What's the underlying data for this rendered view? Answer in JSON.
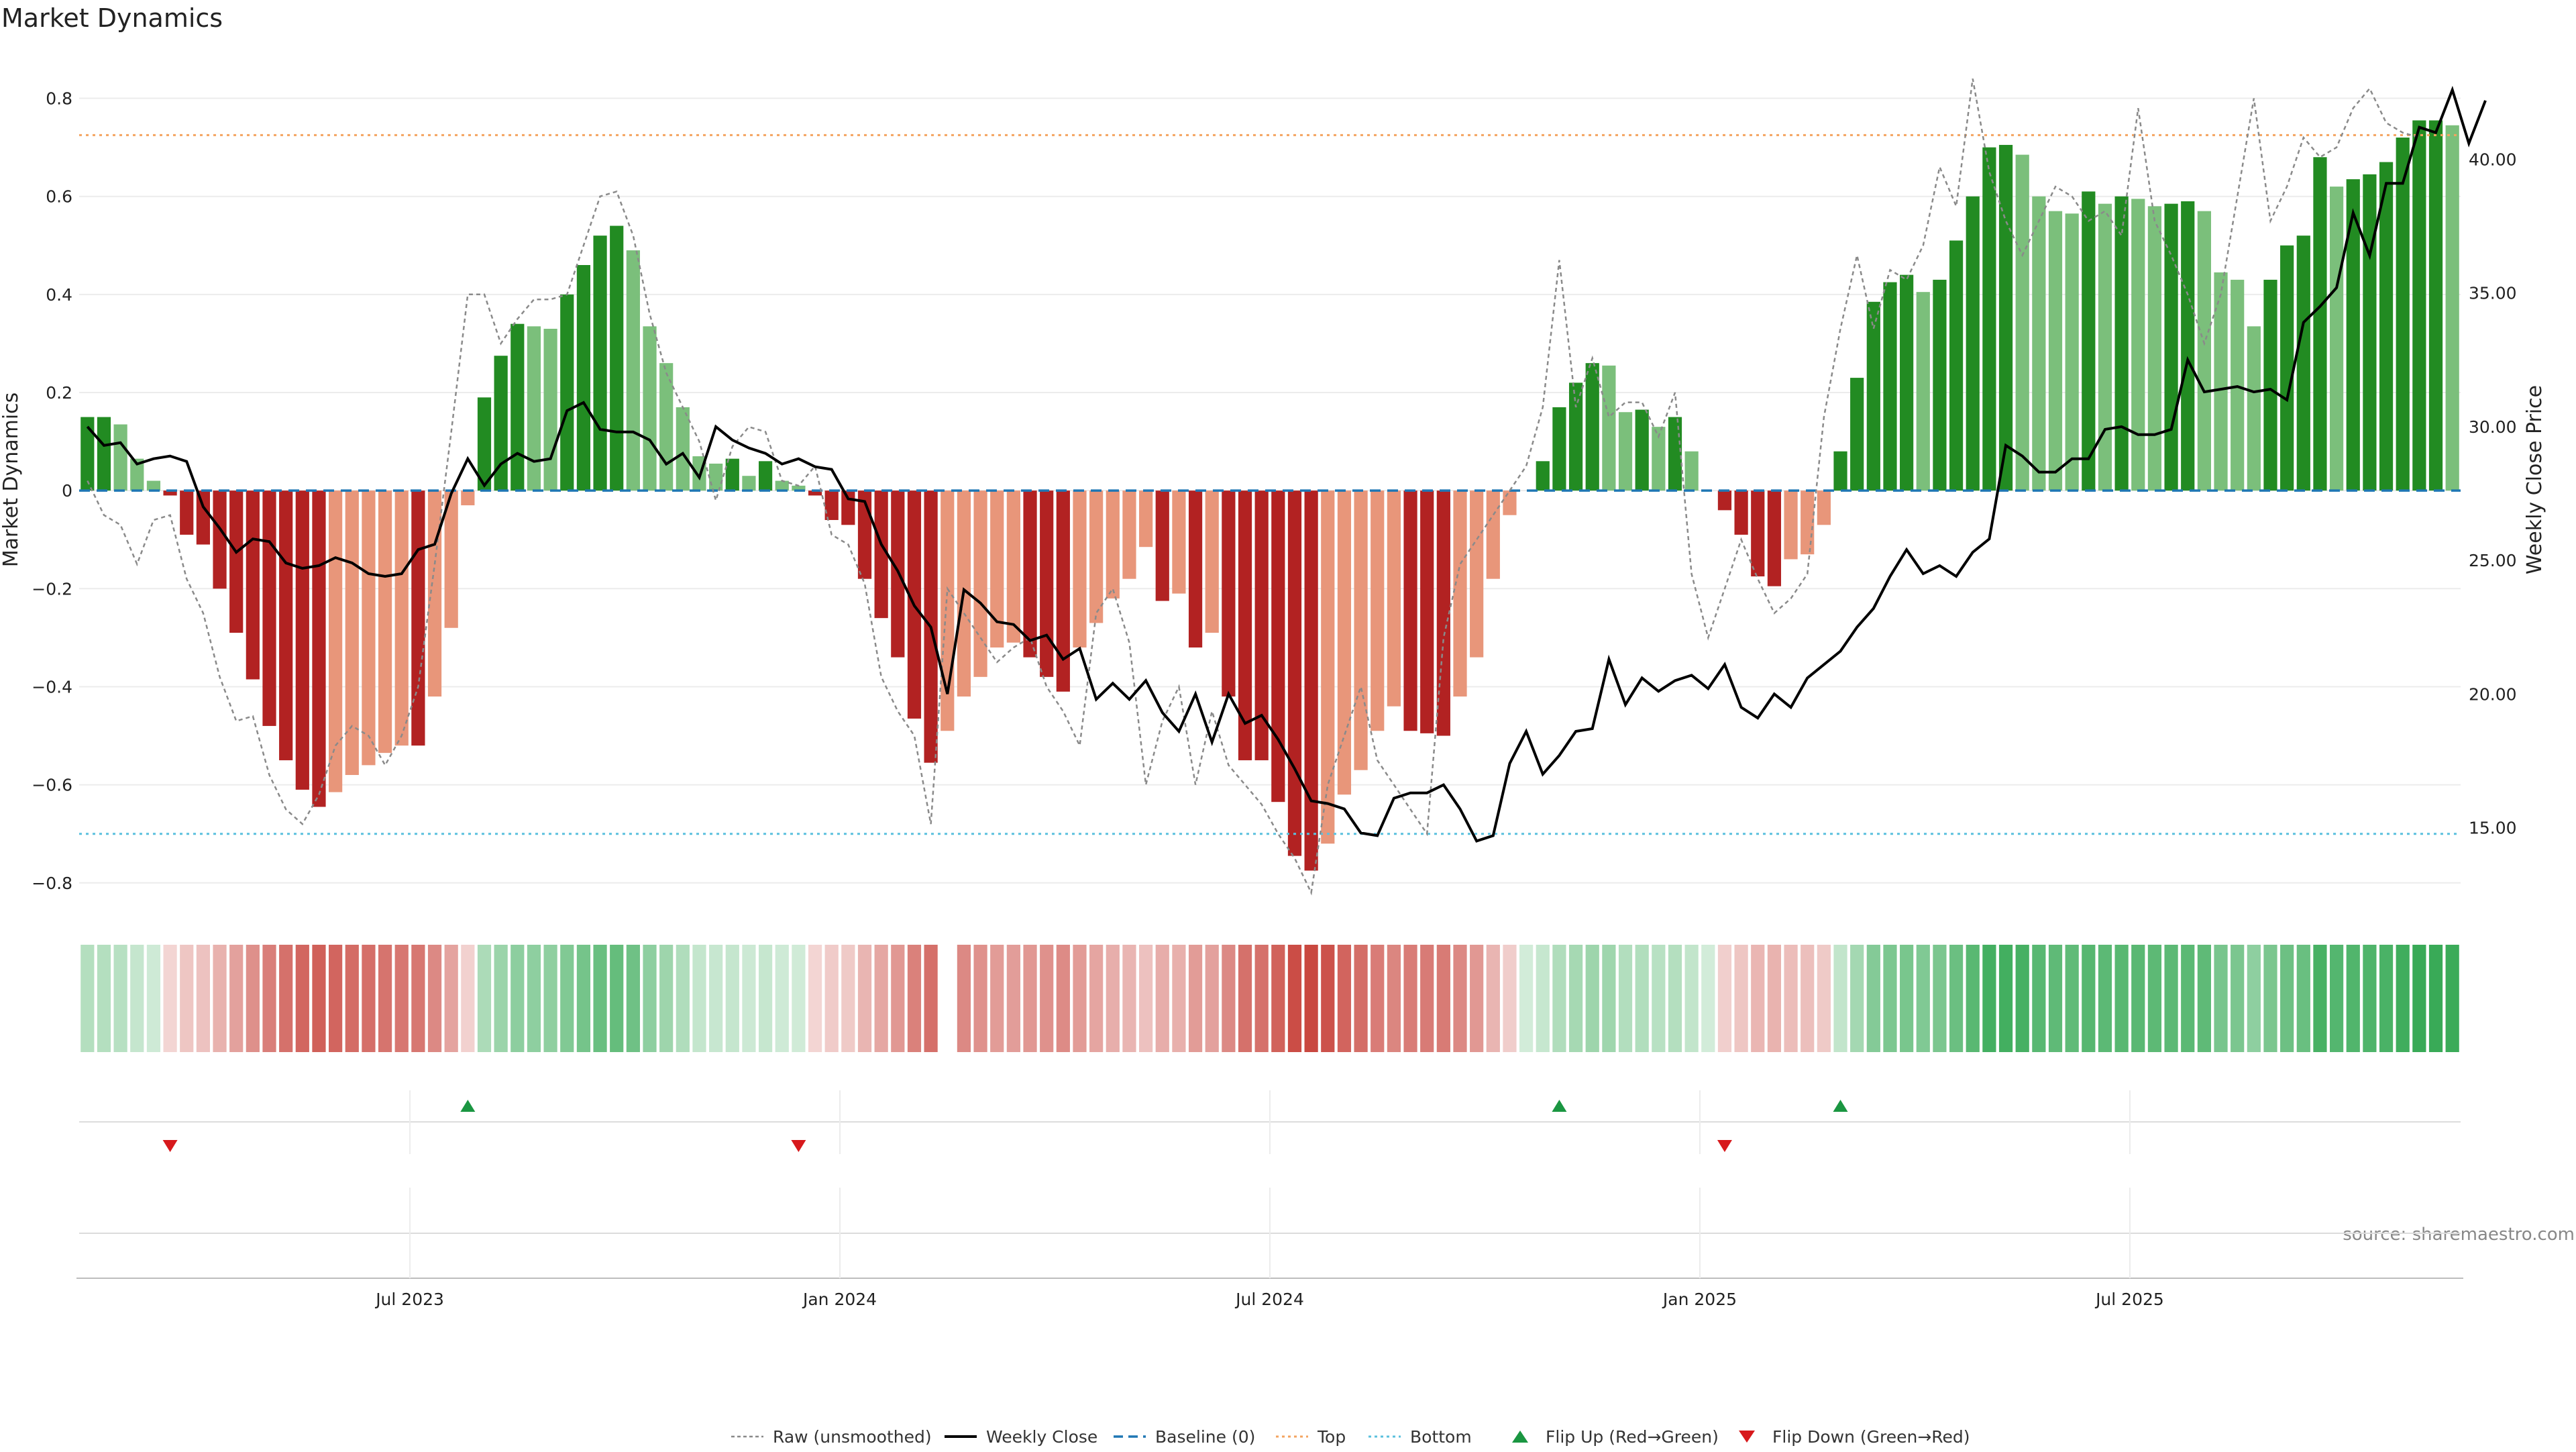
{
  "chart_data": {
    "type": "bar",
    "title": "Market Dynamics",
    "ylabel": "Market Dynamics",
    "y2label": "Weekly Close Price",
    "source": "source: sharemaestro.com",
    "ylim": [
      -0.84,
      0.85
    ],
    "y2lim": [
      12.2,
      43.2
    ],
    "yticks": [
      "0.8",
      "0.6",
      "0.4",
      "0.2",
      "0",
      "−0.2",
      "−0.4",
      "−0.6",
      "−0.8"
    ],
    "ytick_values": [
      0.8,
      0.6,
      0.4,
      0.2,
      0,
      -0.2,
      -0.4,
      -0.6,
      -0.8
    ],
    "y2ticks": [
      "40.00",
      "35.00",
      "30.00",
      "25.00",
      "20.00",
      "15.00"
    ],
    "y2tick_values": [
      40,
      35,
      30,
      25,
      20,
      15
    ],
    "xticks": [
      "Jul 2023",
      "Jan 2024",
      "Jul 2024",
      "Jan 2025",
      "Jul 2025"
    ],
    "xtick_weeks": [
      20,
      46,
      72,
      98,
      124
    ],
    "top_threshold": 0.725,
    "bottom_threshold": -0.7,
    "baseline": 0,
    "grid": true,
    "legend_position": "bottom-center",
    "legend": [
      {
        "label": "Raw (unsmoothed)",
        "kind": "raw"
      },
      {
        "label": "Weekly Close",
        "kind": "close"
      },
      {
        "label": "Baseline (0)",
        "kind": "baseline"
      },
      {
        "label": "Top",
        "kind": "top"
      },
      {
        "label": "Bottom",
        "kind": "bottom"
      },
      {
        "label": "Flip Up (Red→Green)",
        "kind": "flipup"
      },
      {
        "label": "Flip Down (Green→Red)",
        "kind": "flipdown"
      }
    ],
    "colors": {
      "green_strong": "#228B22",
      "green_light": "#7BBF7B",
      "red_strong": "#B22222",
      "red_light": "#E8967A",
      "close_line": "#000000",
      "raw_line": "#8a8a8a",
      "baseline": "#1f77b4",
      "top": "#F4A460",
      "bottom": "#5BC0DE",
      "flip_up": "#1A9641",
      "flip_down": "#D7191C"
    },
    "weeks": 144,
    "week0": "2023-03-06",
    "dynamics": [
      0.15,
      0.15,
      0.135,
      0.065,
      0.02,
      -0.01,
      -0.09,
      -0.11,
      -0.2,
      -0.29,
      -0.385,
      -0.48,
      -0.55,
      -0.61,
      -0.645,
      -0.615,
      -0.58,
      -0.56,
      -0.535,
      -0.52,
      -0.52,
      -0.42,
      -0.28,
      -0.03,
      0.19,
      0.275,
      0.34,
      0.335,
      0.33,
      0.4,
      0.46,
      0.52,
      0.54,
      0.49,
      0.335,
      0.26,
      0.17,
      0.07,
      0.055,
      0.065,
      0.03,
      0.06,
      0.02,
      0.01,
      -0.01,
      -0.06,
      -0.07,
      -0.18,
      -0.26,
      -0.34,
      -0.465,
      -0.555,
      -0.49,
      -0.42,
      -0.38,
      -0.32,
      -0.31,
      -0.34,
      -0.38,
      -0.41,
      -0.32,
      -0.27,
      -0.22,
      -0.18,
      -0.115,
      -0.225,
      -0.21,
      -0.32,
      -0.29,
      -0.42,
      -0.55,
      -0.55,
      -0.635,
      -0.745,
      -0.775,
      -0.72,
      -0.62,
      -0.57,
      -0.49,
      -0.44,
      -0.49,
      -0.495,
      -0.5,
      -0.42,
      -0.34,
      -0.18,
      -0.05,
      0,
      0.06,
      0.17,
      0.22,
      0.26,
      0.255,
      0.16,
      0.165,
      0.13,
      0.15,
      0.08,
      0,
      -0.04,
      -0.09,
      -0.175,
      -0.195,
      -0.14,
      -0.13,
      -0.07,
      0.08,
      0.23,
      0.385,
      0.425,
      0.44,
      0.405,
      0.43,
      0.51,
      0.6,
      0.7,
      0.705,
      0.685,
      0.6,
      0.57,
      0.565,
      0.61,
      0.585,
      0.6,
      0.595,
      0.58,
      0.585,
      0.59,
      0.57,
      0.445,
      0.43,
      0.335,
      0.43,
      0.5,
      0.52,
      0.68,
      0.62,
      0.635,
      0.645,
      0.67,
      0.72,
      0.755,
      0.755,
      0.745
    ],
    "weekly_close": [
      30.0,
      29.3,
      29.4,
      28.6,
      28.8,
      28.9,
      28.7,
      27.0,
      26.2,
      25.3,
      25.8,
      25.7,
      24.9,
      24.7,
      24.8,
      25.1,
      24.9,
      24.5,
      24.4,
      24.5,
      25.4,
      25.6,
      27.5,
      28.8,
      27.8,
      28.6,
      29.0,
      28.7,
      28.8,
      30.6,
      30.9,
      29.9,
      29.8,
      29.8,
      29.5,
      28.6,
      29.0,
      28.1,
      30.0,
      29.5,
      29.2,
      29.0,
      28.6,
      28.8,
      28.5,
      28.4,
      27.3,
      27.2,
      25.6,
      24.6,
      23.3,
      22.5,
      20.0,
      23.9,
      23.4,
      22.7,
      22.6,
      22.0,
      22.2,
      21.3,
      21.7,
      19.8,
      20.4,
      19.8,
      20.5,
      19.3,
      18.6,
      20.0,
      18.2,
      20.0,
      18.9,
      19.2,
      18.3,
      17.2,
      16.0,
      15.9,
      15.7,
      14.8,
      14.7,
      16.1,
      16.3,
      16.3,
      16.6,
      15.7,
      14.5,
      14.7,
      17.4,
      18.6,
      17.0,
      17.7,
      18.6,
      18.7,
      21.3,
      19.6,
      20.6,
      20.1,
      20.5,
      20.7,
      20.2,
      21.1,
      19.5,
      19.1,
      20.0,
      19.5,
      20.6,
      21.1,
      21.6,
      22.5,
      23.2,
      24.4,
      25.4,
      24.5,
      24.8,
      24.4,
      25.3,
      25.8,
      29.3,
      28.9,
      28.3,
      28.3,
      28.8,
      28.8,
      29.9,
      30.0,
      29.7,
      29.7,
      29.9,
      32.5,
      31.3,
      31.4,
      31.5,
      31.3,
      31.4,
      31.0,
      33.9,
      34.5,
      35.2,
      38.0,
      36.4,
      39.1,
      39.1,
      41.2,
      41.0,
      42.6,
      40.6,
      42.2
    ],
    "raw": [
      0.02,
      -0.05,
      -0.07,
      -0.15,
      -0.06,
      -0.05,
      -0.18,
      -0.25,
      -0.38,
      -0.47,
      -0.46,
      -0.58,
      -0.65,
      -0.68,
      -0.62,
      -0.52,
      -0.48,
      -0.5,
      -0.56,
      -0.5,
      -0.4,
      -0.15,
      0.12,
      0.4,
      0.4,
      0.3,
      0.35,
      0.39,
      0.39,
      0.4,
      0.5,
      0.6,
      0.61,
      0.52,
      0.36,
      0.24,
      0.17,
      0.1,
      -0.02,
      0.09,
      0.13,
      0.12,
      0.02,
      0.01,
      0.05,
      -0.09,
      -0.11,
      -0.19,
      -0.38,
      -0.45,
      -0.5,
      -0.68,
      -0.2,
      -0.25,
      -0.3,
      -0.35,
      -0.32,
      -0.3,
      -0.4,
      -0.45,
      -0.52,
      -0.25,
      -0.2,
      -0.31,
      -0.6,
      -0.47,
      -0.4,
      -0.6,
      -0.45,
      -0.56,
      -0.6,
      -0.64,
      -0.7,
      -0.75,
      -0.82,
      -0.6,
      -0.5,
      -0.4,
      -0.55,
      -0.6,
      -0.65,
      -0.7,
      -0.3,
      -0.15,
      -0.1,
      -0.05,
      0,
      0.05,
      0.17,
      0.47,
      0.17,
      0.27,
      0.15,
      0.18,
      0.18,
      0.11,
      0.2,
      -0.17,
      -0.3,
      -0.2,
      -0.1,
      -0.18,
      -0.25,
      -0.22,
      -0.17,
      0.15,
      0.33,
      0.48,
      0.33,
      0.45,
      0.43,
      0.5,
      0.66,
      0.58,
      0.84,
      0.65,
      0.55,
      0.48,
      0.55,
      0.62,
      0.6,
      0.55,
      0.57,
      0.52,
      0.78,
      0.55,
      0.48,
      0.4,
      0.3,
      0.4,
      0.6,
      0.8,
      0.55,
      0.62,
      0.72,
      0.68,
      0.7,
      0.78,
      0.82,
      0.75,
      0.73,
      0.72
    ],
    "flip_up_weeks": [
      23,
      89,
      106
    ],
    "flip_down_weeks": [
      5,
      43,
      99
    ],
    "strip_gap_weeks": [
      52
    ]
  }
}
